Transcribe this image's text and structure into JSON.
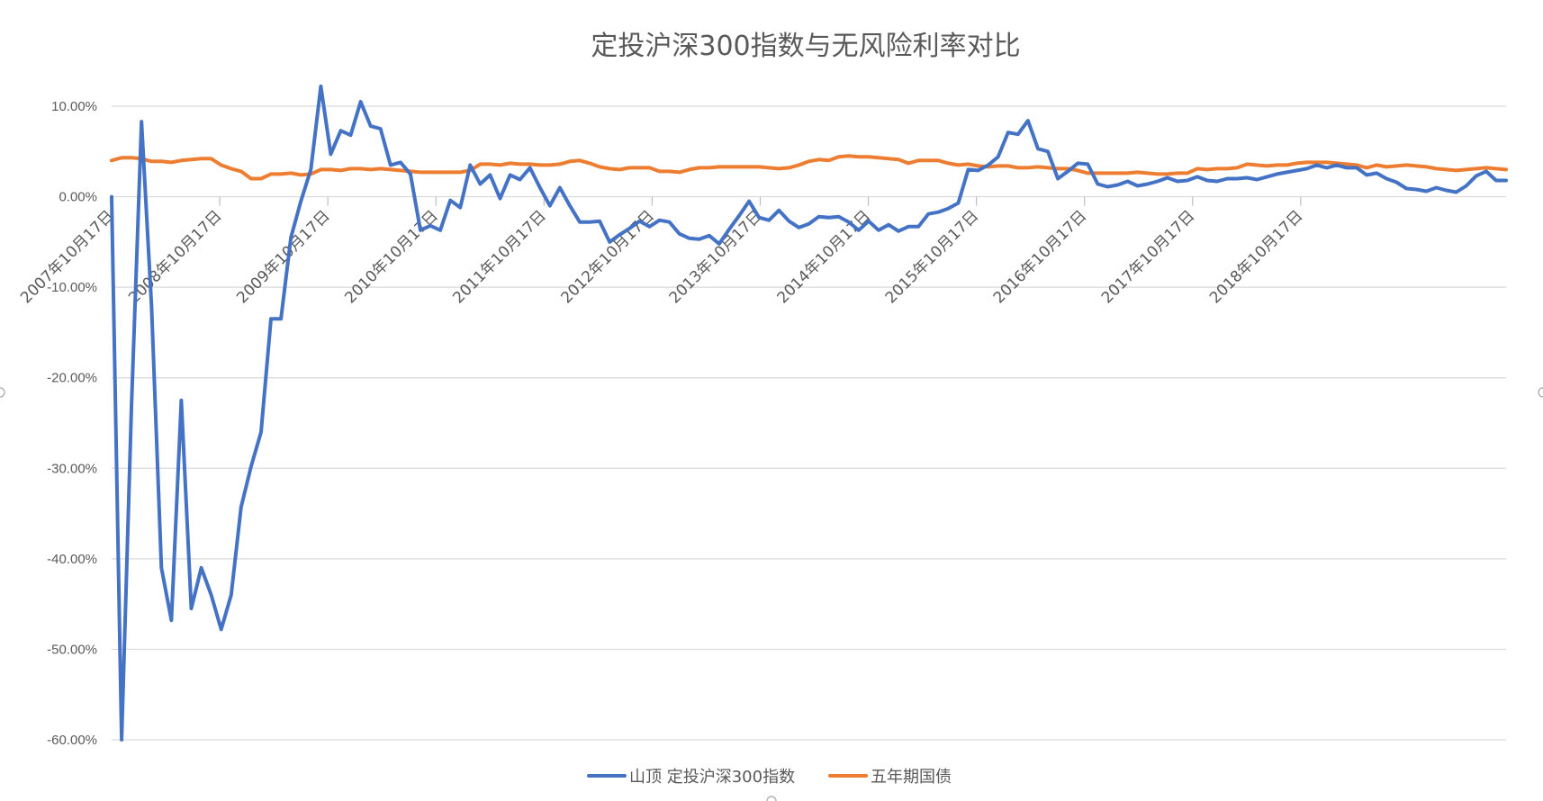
{
  "colors": {
    "series1": "#4472c4",
    "series2": "#ed7d31",
    "grid": "#d9d9d9",
    "text": "#595959"
  },
  "chart_data": {
    "type": "line",
    "title": "定投沪深300指数与无风险利率对比",
    "xlabel": "",
    "ylabel": "",
    "ylim": [
      -0.6,
      0.1
    ],
    "y_tick_values": [
      0.1,
      0.0,
      -0.1,
      -0.2,
      -0.3,
      -0.4,
      -0.5,
      -0.6
    ],
    "y_tick_labels": [
      "10.00%",
      "0.00%",
      "-10.00%",
      "-20.00%",
      "-30.00%",
      "-40.00%",
      "-50.00%",
      "-60.00%"
    ],
    "x_tick_labels": [
      "2007年10月17日",
      "2008年10月17日",
      "2009年10月17日",
      "2010年10月17日",
      "2011年10月17日",
      "2012年10月17日",
      "2013年10月17日",
      "2014年10月17日",
      "2015年10月17日",
      "2016年10月17日",
      "2017年10月17日",
      "2018年10月17日"
    ],
    "grid": true,
    "legend_position": "bottom",
    "series": [
      {
        "name": "山顶 定投沪深300指数",
        "color": "#4472c4",
        "values": [
          0.0,
          -0.6,
          -0.23,
          0.083,
          -0.12,
          -0.41,
          -0.468,
          -0.225,
          -0.455,
          -0.41,
          -0.44,
          -0.478,
          -0.44,
          -0.343,
          -0.298,
          -0.26,
          -0.135,
          -0.135,
          -0.045,
          -0.005,
          0.03,
          0.122,
          0.047,
          0.073,
          0.068,
          0.105,
          0.078,
          0.075,
          0.035,
          0.038,
          0.025,
          -0.037,
          -0.032,
          -0.037,
          -0.004,
          -0.012,
          0.035,
          0.014,
          0.024,
          -0.002,
          0.024,
          0.019,
          0.032,
          0.01,
          -0.01,
          0.01,
          -0.01,
          -0.028,
          -0.028,
          -0.027,
          -0.05,
          -0.042,
          -0.035,
          -0.027,
          -0.033,
          -0.026,
          -0.028,
          -0.041,
          -0.046,
          -0.047,
          -0.043,
          -0.052,
          -0.036,
          -0.021,
          -0.005,
          -0.023,
          -0.026,
          -0.015,
          -0.027,
          -0.034,
          -0.03,
          -0.022,
          -0.023,
          -0.022,
          -0.028,
          -0.037,
          -0.027,
          -0.037,
          -0.031,
          -0.038,
          -0.033,
          -0.033,
          -0.019,
          -0.017,
          -0.013,
          -0.007,
          0.03,
          0.029,
          0.035,
          0.044,
          0.071,
          0.069,
          0.084,
          0.053,
          0.05,
          0.02,
          0.028,
          0.037,
          0.036,
          0.014,
          0.011,
          0.013,
          0.017,
          0.012,
          0.014,
          0.017,
          0.021,
          0.017,
          0.018,
          0.022,
          0.018,
          0.017,
          0.02,
          0.02,
          0.021,
          0.019,
          0.022,
          0.025,
          0.027,
          0.029,
          0.031,
          0.035,
          0.032,
          0.035,
          0.032,
          0.032,
          0.024,
          0.026,
          0.02,
          0.016,
          0.009,
          0.008,
          0.006,
          0.01,
          0.007,
          0.005,
          0.012,
          0.023,
          0.028,
          0.018,
          0.018
        ]
      },
      {
        "name": "五年期国债",
        "color": "#ed7d31",
        "values": [
          0.04,
          0.043,
          0.043,
          0.042,
          0.039,
          0.039,
          0.038,
          0.04,
          0.041,
          0.042,
          0.042,
          0.035,
          0.031,
          0.028,
          0.02,
          0.02,
          0.025,
          0.025,
          0.026,
          0.024,
          0.025,
          0.03,
          0.03,
          0.029,
          0.031,
          0.031,
          0.03,
          0.031,
          0.03,
          0.029,
          0.028,
          0.027,
          0.027,
          0.027,
          0.027,
          0.027,
          0.029,
          0.036,
          0.036,
          0.035,
          0.037,
          0.036,
          0.036,
          0.035,
          0.035,
          0.036,
          0.039,
          0.04,
          0.037,
          0.033,
          0.031,
          0.03,
          0.032,
          0.032,
          0.032,
          0.028,
          0.028,
          0.027,
          0.03,
          0.032,
          0.032,
          0.033,
          0.033,
          0.033,
          0.033,
          0.033,
          0.032,
          0.031,
          0.032,
          0.035,
          0.039,
          0.041,
          0.04,
          0.044,
          0.045,
          0.044,
          0.044,
          0.043,
          0.042,
          0.041,
          0.037,
          0.04,
          0.04,
          0.04,
          0.037,
          0.035,
          0.036,
          0.034,
          0.033,
          0.034,
          0.034,
          0.032,
          0.032,
          0.033,
          0.032,
          0.031,
          0.031,
          0.029,
          0.026,
          0.026,
          0.026,
          0.026,
          0.026,
          0.027,
          0.026,
          0.025,
          0.025,
          0.026,
          0.026,
          0.031,
          0.03,
          0.031,
          0.031,
          0.032,
          0.036,
          0.035,
          0.034,
          0.035,
          0.035,
          0.037,
          0.038,
          0.038,
          0.038,
          0.037,
          0.036,
          0.035,
          0.032,
          0.035,
          0.033,
          0.034,
          0.035,
          0.034,
          0.033,
          0.031,
          0.03,
          0.029,
          0.03,
          0.031,
          0.032,
          0.031,
          0.03
        ]
      }
    ]
  }
}
